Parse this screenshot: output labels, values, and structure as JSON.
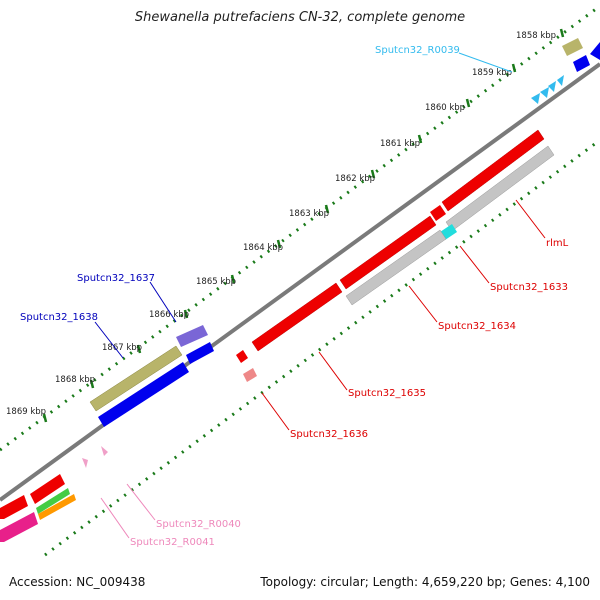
{
  "title": "Shewanella putrefaciens CN-32, complete genome",
  "footer": {
    "accession": "Accession: NC_009438",
    "topology": "Topology: circular; Length: 4,659,220 bp; Genes: 4,100"
  },
  "colors": {
    "backbone": "#7a7a7a",
    "tick": "#1a7a1a",
    "cds_red": "#ee0000",
    "cds_gray": "#c4c4c4",
    "cds_blue": "#0000ee",
    "cds_purple": "#7a66d6",
    "cds_olive": "#b8b46a",
    "trna": "#33bbee",
    "rrna_pink": "#f0a0c8",
    "misc_cyan": "#22dddd",
    "misc_salmon": "#ee8888",
    "misc_magenta": "#e8208a",
    "misc_green": "#44cc44",
    "misc_orange": "#ff9900",
    "label_red": "#dd0000",
    "label_blue": "#0000bb",
    "label_cyan": "#33bbee",
    "label_pink": "#ee88bb"
  },
  "kbp_labels": [
    "1858 kbp",
    "1859 kbp",
    "1860 kbp",
    "1861 kbp",
    "1862 kbp",
    "1863 kbp",
    "1864 kbp",
    "1865 kbp",
    "1866 kbp",
    "1867 kbp",
    "1868 kbp",
    "1869 kbp"
  ],
  "gene_labels": {
    "rlmL": "rlmL",
    "g1633": "Sputcn32_1633",
    "g1634": "Sputcn32_1634",
    "g1635": "Sputcn32_1635",
    "g1636": "Sputcn32_1636",
    "g1637": "Sputcn32_1637",
    "g1638": "Sputcn32_1638",
    "r0039": "Sputcn32_R0039",
    "r0040": "Sputcn32_R0040",
    "r0041": "Sputcn32_R0041"
  }
}
